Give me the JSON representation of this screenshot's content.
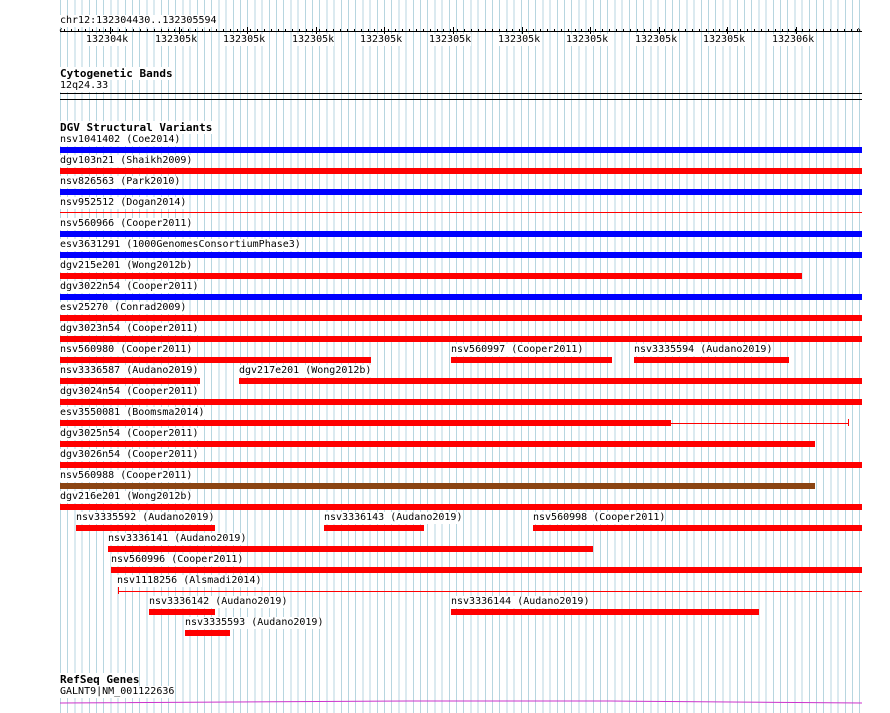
{
  "ruler": {
    "range_label": "chr12:132304430..132305594",
    "ticks": [
      "132304k",
      "132305k",
      "132305k",
      "132305k",
      "132305k",
      "132305k",
      "132305k",
      "132305k",
      "132305k",
      "132305k",
      "132306k"
    ]
  },
  "cytoband": {
    "title": "Cytogenetic Bands",
    "band": "12q24.33"
  },
  "dgv": {
    "title": "DGV Structural Variants",
    "colors": {
      "blue": "#0000ff",
      "red": "#ff0000",
      "brown": "#8b4513"
    },
    "features": [
      {
        "label": "nsv1041402 (Coe2014)"
      },
      {
        "label": "dgv103n21 (Shaikh2009)"
      },
      {
        "label": "nsv826563 (Park2010)"
      },
      {
        "label": "nsv952512 (Dogan2014)"
      },
      {
        "label": "nsv560966 (Cooper2011)"
      },
      {
        "label": "esv3631291 (1000GenomesConsortiumPhase3)"
      },
      {
        "label": "dgv215e201 (Wong2012b)"
      },
      {
        "label": "dgv3022n54 (Cooper2011)"
      },
      {
        "label": "esv25270 (Conrad2009)"
      },
      {
        "label": "dgv3023n54 (Cooper2011)"
      },
      {
        "label": "nsv560980 (Cooper2011)"
      },
      {
        "label": "nsv560997 (Cooper2011)"
      },
      {
        "label": "nsv3335594 (Audano2019)"
      },
      {
        "label": "nsv3336587 (Audano2019)"
      },
      {
        "label": "dgv217e201 (Wong2012b)"
      },
      {
        "label": "dgv3024n54 (Cooper2011)"
      },
      {
        "label": "esv3550081 (Boomsma2014)"
      },
      {
        "label": "dgv3025n54 (Cooper2011)"
      },
      {
        "label": "dgv3026n54 (Cooper2011)"
      },
      {
        "label": "nsv560988 (Cooper2011)"
      },
      {
        "label": "dgv216e201 (Wong2012b)"
      },
      {
        "label": "nsv3335592 (Audano2019)"
      },
      {
        "label": "nsv3336143 (Audano2019)"
      },
      {
        "label": "nsv560998 (Cooper2011)"
      },
      {
        "label": "nsv3336141 (Audano2019)"
      },
      {
        "label": "nsv560996 (Cooper2011)"
      },
      {
        "label": "nsv1118256 (Alsmadi2014)"
      },
      {
        "label": "nsv3336142 (Audano2019)"
      },
      {
        "label": "nsv3336144 (Audano2019)"
      },
      {
        "label": "nsv3335593 (Audano2019)"
      }
    ]
  },
  "refseq": {
    "title": "RefSeq Genes",
    "gene_label": "GALNT9|NM_001122636",
    "color": "#cc33cc"
  }
}
